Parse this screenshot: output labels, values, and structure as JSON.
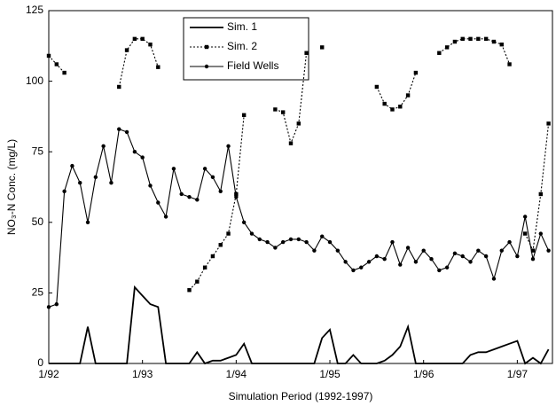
{
  "chart_data": {
    "type": "line",
    "x_label": "Simulation Period (1992-1997)",
    "y_label": "NO₃-N Conc. (mg/L)",
    "x": [
      0,
      1,
      2,
      3,
      4,
      5,
      6,
      7,
      8,
      9,
      10,
      11,
      12,
      13,
      14,
      15,
      16,
      17,
      18,
      19,
      20,
      21,
      22,
      23,
      24,
      25,
      26,
      27,
      28,
      29,
      30,
      31,
      32,
      33,
      34,
      35,
      36,
      37,
      38,
      39,
      40,
      41,
      42,
      43,
      44,
      45,
      46,
      47,
      48,
      49,
      50,
      51,
      52,
      53,
      54,
      55,
      56,
      57,
      58,
      59,
      60,
      61,
      62,
      63,
      64
    ],
    "xlim": [
      0,
      64.5
    ],
    "xticks": [
      {
        "value": 0,
        "label": "1/92"
      },
      {
        "value": 12,
        "label": "1/93"
      },
      {
        "value": 24,
        "label": "1/94"
      },
      {
        "value": 36,
        "label": "1/95"
      },
      {
        "value": 48,
        "label": "1/96"
      },
      {
        "value": 60,
        "label": "1/97"
      }
    ],
    "ylim": [
      0,
      125
    ],
    "yticks": [
      0,
      25,
      50,
      75,
      100,
      125
    ],
    "grid": false,
    "legend_position": "top",
    "series": [
      {
        "name": "Sim. 1",
        "color": "#000000",
        "line_style": "solid",
        "marker": "none",
        "values": [
          0,
          0,
          0,
          0,
          0,
          13,
          0,
          0,
          0,
          0,
          0,
          27,
          24,
          21,
          20,
          0,
          0,
          0,
          0,
          4,
          0,
          1,
          1,
          2,
          3,
          7,
          0,
          0,
          0,
          0,
          0,
          0,
          0,
          0,
          0,
          9,
          12,
          0,
          0,
          3,
          0,
          0,
          0,
          1,
          3,
          6,
          13,
          0,
          0,
          0,
          0,
          0,
          0,
          0,
          3,
          4,
          4,
          5,
          6,
          7,
          8,
          0,
          2,
          0,
          5
        ]
      },
      {
        "name": "Sim. 2",
        "color": "#000000",
        "line_style": "dotted",
        "marker": "square",
        "values": [
          109,
          106,
          103,
          null,
          null,
          null,
          null,
          null,
          null,
          98,
          111,
          115,
          115,
          113,
          105,
          null,
          null,
          null,
          26,
          29,
          34,
          38,
          42,
          46,
          60,
          88,
          null,
          null,
          null,
          90,
          89,
          78,
          85,
          110,
          null,
          112,
          null,
          null,
          null,
          null,
          null,
          null,
          98,
          92,
          90,
          91,
          95,
          103,
          null,
          null,
          110,
          112,
          114,
          115,
          115,
          115,
          115,
          114,
          113,
          106,
          null,
          46,
          40,
          60,
          85
        ]
      },
      {
        "name": "Field Wells",
        "color": "#000000",
        "line_style": "solid",
        "marker": "circle",
        "values": [
          20,
          21,
          61,
          70,
          64,
          50,
          66,
          77,
          64,
          83,
          82,
          75,
          73,
          63,
          57,
          52,
          69,
          60,
          59,
          58,
          69,
          66,
          61,
          77,
          59,
          50,
          46,
          44,
          43,
          41,
          43,
          44,
          44,
          43,
          40,
          45,
          43,
          40,
          36,
          33,
          34,
          36,
          38,
          37,
          43,
          35,
          41,
          36,
          40,
          37,
          33,
          34,
          39,
          38,
          36,
          40,
          38,
          30,
          40,
          43,
          38,
          52,
          37,
          46,
          40
        ]
      }
    ]
  }
}
